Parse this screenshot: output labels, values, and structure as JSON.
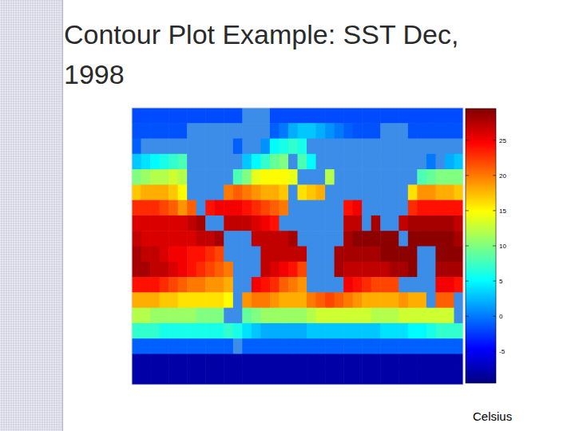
{
  "chart_data": {
    "type": "heatmap",
    "title": "Contour Plot Example: SST Dec, 1998",
    "x": [
      -175,
      -165,
      -155,
      -145,
      -135,
      -125,
      -115,
      -105,
      -95,
      -85,
      -75,
      -65,
      -55,
      -45,
      -35,
      -25,
      -15,
      -5,
      5,
      15,
      25,
      35,
      45,
      55,
      65,
      75,
      85,
      95,
      105,
      115,
      125,
      135,
      145,
      155,
      165,
      175
    ],
    "y": [
      85,
      75,
      65,
      55,
      45,
      35,
      25,
      15,
      5,
      -5,
      -15,
      -25,
      -35,
      -45,
      -55,
      -65,
      -75,
      -85
    ],
    "xlim": [
      -180,
      180
    ],
    "ylim": [
      -90,
      90
    ],
    "values": [
      [
        -1.8,
        -1.8,
        -1.8,
        -1.8,
        -1.8,
        -1.8,
        -1.8,
        -1.8,
        -1.8,
        -1.8,
        -1.8,
        -1.8,
        null,
        null,
        null,
        -1.8,
        -1.8,
        -1.8,
        -1.8,
        -1.8,
        -1.8,
        -1.8,
        -1.8,
        -1.8,
        -1.8,
        -1.8,
        -1.8,
        -1.8,
        -1.8,
        -1.8,
        -1.8,
        -1.8,
        -1.8,
        -1.8,
        -1.8,
        -1.8
      ],
      [
        -1.5,
        -1.5,
        -1.5,
        -1.5,
        -1.5,
        -1.5,
        null,
        null,
        null,
        null,
        null,
        null,
        null,
        null,
        null,
        -1,
        0,
        2,
        3,
        3,
        2,
        1,
        0,
        -1,
        -1.5,
        -1.5,
        -1.5,
        null,
        null,
        null,
        -1.5,
        -1.5,
        -1.5,
        -1.5,
        -1.5,
        -1.5
      ],
      [
        -1,
        null,
        null,
        null,
        null,
        null,
        null,
        null,
        null,
        null,
        null,
        -1,
        null,
        null,
        1,
        5,
        6,
        7,
        6,
        null,
        null,
        null,
        null,
        null,
        null,
        null,
        null,
        null,
        null,
        null,
        null,
        null,
        null,
        null,
        null,
        null
      ],
      [
        3,
        4,
        5,
        6,
        7,
        8,
        null,
        null,
        null,
        null,
        null,
        null,
        3,
        5,
        7,
        9,
        10,
        null,
        8,
        5,
        null,
        null,
        null,
        null,
        null,
        null,
        null,
        null,
        null,
        null,
        null,
        null,
        0,
        null,
        2,
        3
      ],
      [
        10,
        11,
        12,
        12,
        13,
        12,
        null,
        null,
        null,
        null,
        null,
        8,
        10,
        14,
        15,
        15,
        15,
        14,
        null,
        null,
        null,
        12,
        null,
        null,
        null,
        null,
        null,
        null,
        null,
        null,
        null,
        8,
        9,
        10,
        10,
        10
      ],
      [
        17,
        18,
        18,
        18,
        17,
        15,
        null,
        null,
        null,
        null,
        20,
        21,
        20,
        19,
        18,
        18,
        17,
        null,
        16,
        17,
        18,
        null,
        null,
        null,
        null,
        null,
        null,
        null,
        null,
        null,
        16,
        19,
        19,
        18,
        18,
        17
      ],
      [
        23,
        23,
        23,
        22,
        21,
        19,
        21,
        null,
        24,
        25,
        25,
        25,
        24,
        23,
        22,
        21,
        20,
        null,
        null,
        null,
        null,
        null,
        null,
        24,
        25,
        null,
        null,
        null,
        null,
        null,
        23,
        24,
        24,
        24,
        24,
        24
      ],
      [
        26,
        26,
        26,
        26,
        26,
        26,
        27,
        28,
        null,
        null,
        27,
        27,
        27,
        26,
        25,
        24,
        null,
        null,
        null,
        null,
        null,
        null,
        null,
        27,
        27,
        null,
        28,
        null,
        null,
        27,
        28,
        28,
        28,
        28,
        28,
        27
      ],
      [
        27,
        26,
        26,
        26,
        26,
        26,
        26,
        27,
        27,
        28,
        null,
        null,
        null,
        27,
        27,
        27,
        27,
        28,
        null,
        null,
        null,
        null,
        null,
        28,
        29,
        29,
        29,
        29,
        29,
        null,
        29,
        29,
        29,
        29,
        29,
        28
      ],
      [
        28,
        27,
        27,
        26,
        25,
        25,
        24,
        24,
        23,
        22,
        null,
        null,
        null,
        null,
        27,
        27,
        27,
        27,
        27,
        null,
        null,
        null,
        28,
        28,
        28,
        28,
        28,
        29,
        29,
        29,
        29,
        null,
        null,
        29,
        29,
        29
      ],
      [
        28,
        28,
        27,
        27,
        26,
        25,
        24,
        23,
        22,
        21,
        20,
        null,
        null,
        null,
        27,
        26,
        25,
        24,
        22,
        null,
        null,
        null,
        28,
        27,
        27,
        27,
        27,
        27,
        28,
        28,
        29,
        null,
        null,
        28,
        28,
        28
      ],
      [
        24,
        24,
        24,
        23,
        22,
        21,
        20,
        20,
        19,
        19,
        18,
        null,
        null,
        25,
        24,
        23,
        21,
        20,
        19,
        null,
        null,
        null,
        null,
        25,
        24,
        23,
        22,
        22,
        22,
        null,
        null,
        null,
        null,
        25,
        25,
        24
      ],
      [
        18,
        18,
        18,
        17,
        17,
        16,
        16,
        16,
        16,
        16,
        15,
        null,
        19,
        20,
        20,
        19,
        18,
        18,
        18,
        20,
        21,
        22,
        21,
        20,
        19,
        18,
        18,
        18,
        18,
        19,
        18,
        18,
        null,
        21,
        21,
        null
      ],
      [
        12,
        12,
        11,
        11,
        11,
        11,
        11,
        10,
        10,
        10,
        null,
        null,
        9,
        10,
        11,
        11,
        11,
        11,
        11,
        12,
        13,
        13,
        13,
        13,
        13,
        13,
        12,
        12,
        12,
        13,
        13,
        13,
        13,
        13,
        13,
        null
      ],
      [
        7,
        7,
        7,
        6,
        6,
        6,
        6,
        6,
        6,
        6,
        7,
        6,
        4,
        3,
        2,
        2,
        2,
        2,
        2,
        3,
        3,
        3,
        3,
        3,
        3,
        3,
        3,
        4,
        4,
        4,
        5,
        5,
        6,
        7,
        7,
        7
      ],
      [
        -1,
        -1,
        -1,
        -1,
        -1,
        -1,
        -1,
        -1,
        -1,
        -1,
        -1,
        null,
        -1,
        -1,
        -1,
        -1,
        -1,
        -1,
        -1,
        -1,
        -1,
        -1,
        -1,
        -1,
        -1,
        -1,
        -1,
        -1,
        -1,
        -1,
        -1,
        -1,
        -1,
        -1,
        -1,
        -1
      ],
      [
        -8,
        -8,
        -8,
        -8,
        -8,
        -8,
        -8,
        -8,
        -8,
        -8,
        -8,
        -8,
        -8,
        -8,
        -8,
        -8,
        -8,
        -8,
        -8,
        -8,
        -8,
        -8,
        -8,
        -8,
        -8,
        -8,
        -8,
        -8,
        -8,
        -8,
        -8,
        -8,
        -8,
        -8,
        -8,
        -8
      ],
      [
        -8,
        -8,
        -8,
        -8,
        -8,
        -8,
        -8,
        -8,
        -8,
        -8,
        -8,
        -8,
        -8,
        -8,
        -8,
        -8,
        -8,
        -8,
        -8,
        -8,
        -8,
        -8,
        -8,
        -8,
        -8,
        -8,
        -8,
        -8,
        -8,
        -8,
        -8,
        -8,
        -8,
        -8,
        -8,
        -8
      ]
    ],
    "colorbar": {
      "lim": [
        -9.5,
        29.5
      ],
      "ticks": [
        -5,
        0,
        5,
        10,
        15,
        20,
        25
      ],
      "label": "Celsius"
    }
  }
}
